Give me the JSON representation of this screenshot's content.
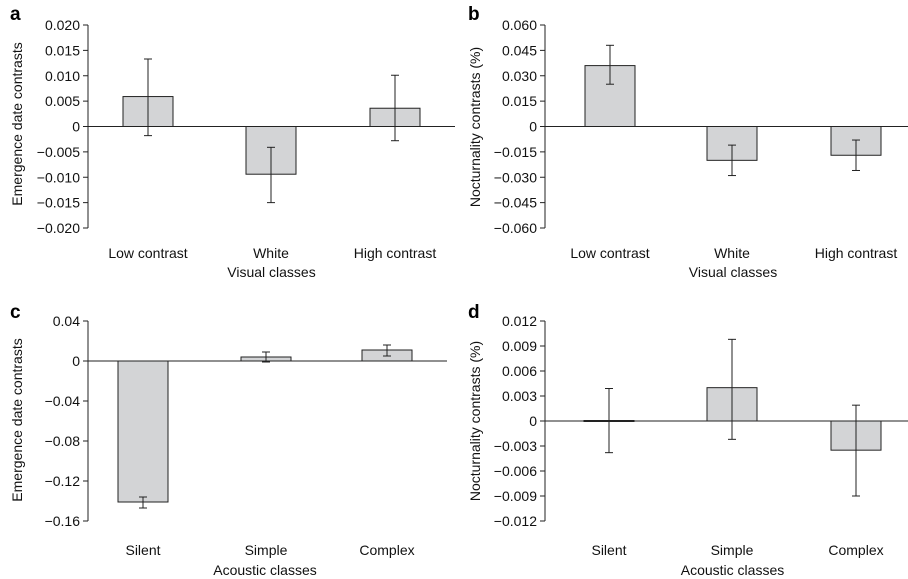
{
  "chart_data": [
    {
      "panel": "a",
      "type": "bar",
      "categories": [
        "Low contrast",
        "White",
        "High contrast"
      ],
      "values": [
        0.0059,
        -0.0094,
        0.0036
      ],
      "error_low": [
        -0.0018,
        -0.015,
        -0.0028
      ],
      "error_high": [
        0.0133,
        -0.0041,
        0.0101
      ],
      "xlabel": "Visual classes",
      "ylabel": "Emergence date contrasts",
      "ylim": [
        -0.02,
        0.02
      ],
      "yticks": [
        0.02,
        0.015,
        0.01,
        0.005,
        0,
        -0.005,
        -0.01,
        -0.015,
        -0.02
      ],
      "ytick_labels": [
        "0.020",
        "0.015",
        "0.010",
        "0.005",
        "0",
        "-0.005",
        "-0.010",
        "-0.015",
        "-0.020"
      ],
      "bar_color": "#d3d4d6"
    },
    {
      "panel": "b",
      "type": "bar",
      "categories": [
        "Low contrast",
        "White",
        "High contrast"
      ],
      "values": [
        0.036,
        -0.02,
        -0.017
      ],
      "error_low": [
        0.025,
        -0.029,
        -0.026
      ],
      "error_high": [
        0.048,
        -0.011,
        -0.008
      ],
      "xlabel": "Visual classes",
      "ylabel": "Nocturnality contrasts (%)",
      "ylim": [
        -0.06,
        0.06
      ],
      "yticks": [
        0.06,
        0.045,
        0.03,
        0.015,
        0,
        -0.015,
        -0.03,
        -0.045,
        -0.06
      ],
      "ytick_labels": [
        "0.060",
        "0.045",
        "0.030",
        "0.015",
        "0",
        "-0.015",
        "-0.030",
        "-0.045",
        "-0.060"
      ],
      "bar_color": "#d3d4d6"
    },
    {
      "panel": "c",
      "type": "bar",
      "categories": [
        "Silent",
        "Simple",
        "Complex"
      ],
      "values": [
        -0.141,
        0.004,
        0.011
      ],
      "error_low": [
        -0.147,
        -0.001,
        0.005
      ],
      "error_high": [
        -0.136,
        0.009,
        0.016
      ],
      "xlabel": "Acoustic classes",
      "ylabel": "Emergence date contrasts",
      "ylim": [
        -0.16,
        0.04
      ],
      "yticks": [
        0.04,
        0,
        -0.04,
        -0.08,
        -0.12,
        -0.16
      ],
      "ytick_labels": [
        "0.04",
        "0",
        "-0.04",
        "-0.08",
        "-0.12",
        "-0.16"
      ],
      "bar_color": "#d3d4d6"
    },
    {
      "panel": "d",
      "type": "bar",
      "categories": [
        "Silent",
        "Simple",
        "Complex"
      ],
      "values": [
        0.0,
        0.004,
        -0.0035
      ],
      "error_low": [
        -0.0038,
        -0.0022,
        -0.009
      ],
      "error_high": [
        0.0039,
        0.0098,
        0.0019
      ],
      "xlabel": "Acoustic classes",
      "ylabel": "Nocturnality contrasts (%)",
      "ylim": [
        -0.012,
        0.012
      ],
      "yticks": [
        0.012,
        0.009,
        0.006,
        0.003,
        0,
        -0.003,
        -0.006,
        -0.009,
        -0.012
      ],
      "ytick_labels": [
        "0.012",
        "0.009",
        "0.006",
        "0.003",
        "0",
        "-0.003",
        "-0.006",
        "-0.009",
        "-0.012"
      ],
      "bar_color": "#d3d4d6"
    }
  ]
}
